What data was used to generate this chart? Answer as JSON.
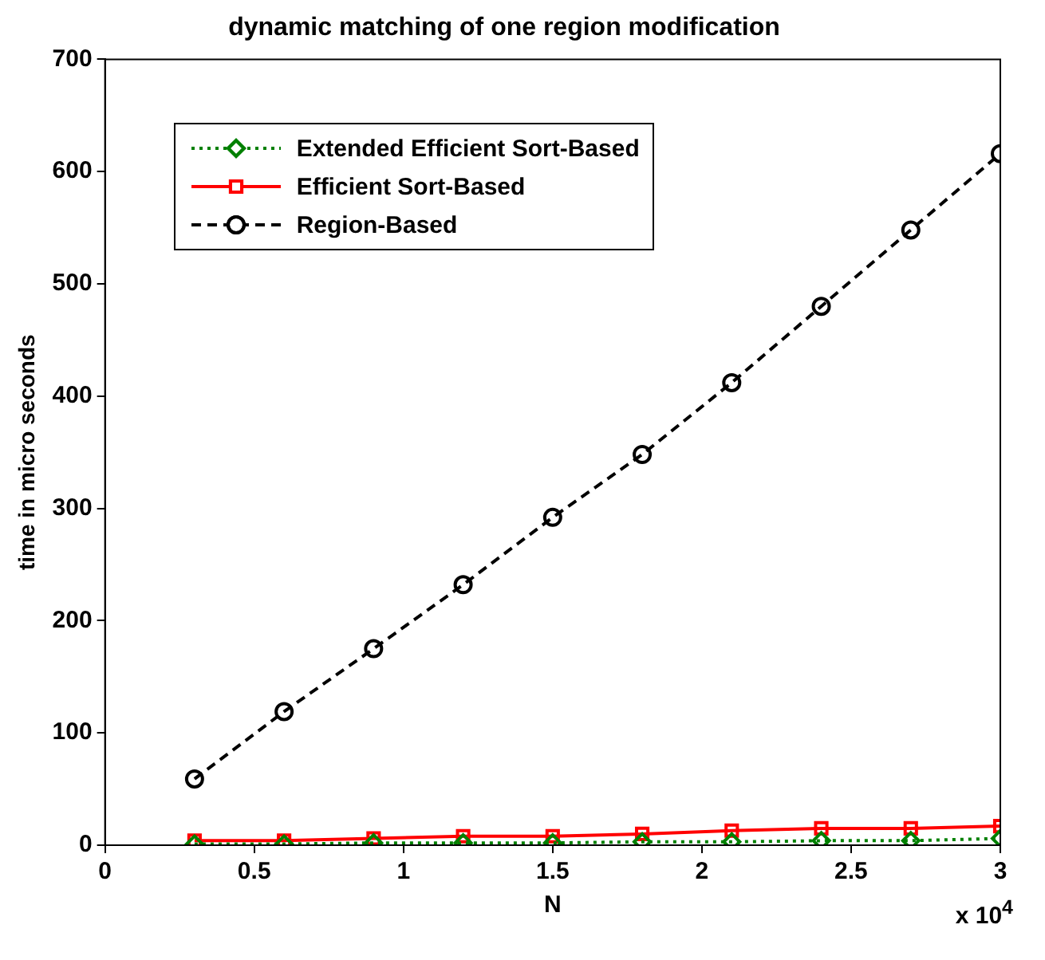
{
  "chart_data": {
    "type": "line",
    "title": "dynamic matching of one region modification",
    "xlabel": "N",
    "ylabel": "time in micro seconds",
    "x": [
      0.3,
      0.6,
      0.9,
      1.2,
      1.5,
      1.8,
      2.1,
      2.4,
      2.7,
      3
    ],
    "series": [
      {
        "name": "Extended Efficient Sort-Based",
        "color": "#008000",
        "marker": "diamond",
        "line_style": "dotted",
        "values": [
          1,
          1,
          2,
          2,
          2,
          3,
          3,
          4,
          4,
          6
        ]
      },
      {
        "name": "Efficient Sort-Based",
        "color": "#ff0000",
        "marker": "square",
        "line_style": "solid",
        "values": [
          4,
          4,
          6,
          8,
          8,
          10,
          13,
          15,
          15,
          17
        ]
      },
      {
        "name": "Region-Based",
        "color": "#000000",
        "marker": "circle",
        "line_style": "dashed",
        "values": [
          59,
          119,
          175,
          232,
          292,
          348,
          412,
          480,
          548,
          616
        ]
      }
    ],
    "xlim": [
      0,
      3
    ],
    "xticks": [
      0,
      0.5,
      1,
      1.5,
      2,
      2.5,
      3
    ],
    "ylim": [
      0,
      700
    ],
    "yticks": [
      0,
      100,
      200,
      300,
      400,
      500,
      600,
      700
    ],
    "annotations": [
      "x 10$^{4}$"
    ],
    "grid": false,
    "legend": "top left"
  }
}
